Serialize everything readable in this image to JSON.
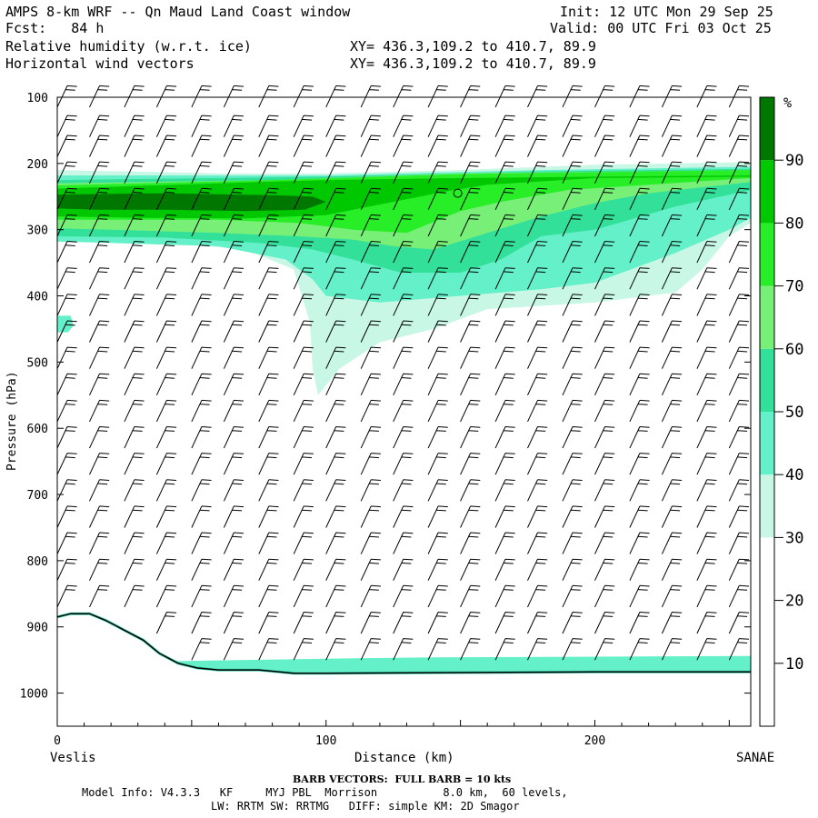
{
  "header": {
    "title": "AMPS 8-km WRF -- Qn Maud Land Coast window",
    "fcst": "Fcst:   84 h",
    "init": "Init: 12 UTC Mon 29 Sep 25",
    "valid": "Valid: 00 UTC Fri 03 Oct 25",
    "field1": "Relative humidity (w.r.t. ice)",
    "field2": "Horizontal wind vectors",
    "xy1": "XY= 436.3,109.2 to 410.7, 89.9",
    "xy2": "XY= 436.3,109.2 to 410.7, 89.9"
  },
  "footer": {
    "barb_note": "BARB VECTORS:  FULL BARB = 10 kts",
    "model_info": "Model Info: V4.3.3   KF     MYJ PBL  Morrison          8.0 km,  60 levels,",
    "physics": "LW: RRTM SW: RRTMG   DIFF: simple KM: 2D Smagor"
  },
  "chart_data": {
    "type": "heatmap",
    "title": "Relative humidity (w.r.t. ice) cross-section",
    "xlabel": "Distance (km)",
    "ylabel": "Pressure (hPa)",
    "xlim": [
      0,
      258
    ],
    "ylim": [
      1050,
      100
    ],
    "x_ticks": [
      0,
      100,
      200
    ],
    "y_ticks": [
      100,
      200,
      300,
      400,
      500,
      600,
      700,
      800,
      900,
      1000
    ],
    "left_endpoint": "Veslis",
    "right_endpoint": "SANAE",
    "colorbar": {
      "unit": "%",
      "tick_labels": [
        "10",
        "20",
        "30",
        "40",
        "50",
        "60",
        "70",
        "80",
        "90"
      ],
      "levels": [
        0,
        30,
        40,
        50,
        60,
        70,
        80,
        90,
        100
      ],
      "colors": [
        "#ffffff",
        "#c8f7e6",
        "#64f0c8",
        "#32e09a",
        "#78f078",
        "#28ee28",
        "#00c800",
        "#007800"
      ]
    },
    "contour_bands": [
      {
        "min": 30,
        "points": [
          [
            0,
            210
          ],
          [
            60,
            215
          ],
          [
            100,
            215
          ],
          [
            150,
            210
          ],
          [
            200,
            202
          ],
          [
            258,
            198
          ],
          [
            258,
            290
          ],
          [
            250,
            310
          ],
          [
            240,
            360
          ],
          [
            230,
            395
          ],
          [
            200,
            410
          ],
          [
            160,
            420
          ],
          [
            140,
            450
          ],
          [
            120,
            470
          ],
          [
            105,
            510
          ],
          [
            97,
            550
          ],
          [
            95,
            510
          ],
          [
            94,
            440
          ],
          [
            88,
            360
          ],
          [
            70,
            330
          ],
          [
            40,
            320
          ],
          [
            0,
            318
          ]
        ]
      },
      {
        "min": 40,
        "points": [
          [
            0,
            218
          ],
          [
            100,
            218
          ],
          [
            180,
            210
          ],
          [
            258,
            205
          ],
          [
            258,
            282
          ],
          [
            250,
            300
          ],
          [
            230,
            335
          ],
          [
            200,
            380
          ],
          [
            180,
            390
          ],
          [
            150,
            400
          ],
          [
            120,
            410
          ],
          [
            100,
            400
          ],
          [
            95,
            375
          ],
          [
            85,
            345
          ],
          [
            60,
            325
          ],
          [
            20,
            320
          ],
          [
            0,
            318
          ]
        ]
      },
      {
        "min": 50,
        "points": [
          [
            0,
            225
          ],
          [
            100,
            220
          ],
          [
            180,
            212
          ],
          [
            258,
            208
          ],
          [
            258,
            240
          ],
          [
            230,
            265
          ],
          [
            200,
            300
          ],
          [
            180,
            310
          ],
          [
            165,
            345
          ],
          [
            150,
            365
          ],
          [
            128,
            365
          ],
          [
            110,
            345
          ],
          [
            95,
            330
          ],
          [
            75,
            320
          ],
          [
            40,
            312
          ],
          [
            0,
            310
          ]
        ]
      },
      {
        "min": 60,
        "points": [
          [
            0,
            230
          ],
          [
            80,
            225
          ],
          [
            150,
            215
          ],
          [
            258,
            210
          ],
          [
            258,
            228
          ],
          [
            220,
            245
          ],
          [
            200,
            260
          ],
          [
            180,
            280
          ],
          [
            160,
            305
          ],
          [
            140,
            330
          ],
          [
            125,
            325
          ],
          [
            110,
            315
          ],
          [
            90,
            310
          ],
          [
            60,
            305
          ],
          [
            20,
            300
          ],
          [
            0,
            298
          ]
        ]
      },
      {
        "min": 70,
        "points": [
          [
            0,
            233
          ],
          [
            80,
            225
          ],
          [
            150,
            216
          ],
          [
            220,
            212
          ],
          [
            258,
            210
          ],
          [
            258,
            222
          ],
          [
            220,
            232
          ],
          [
            190,
            240
          ],
          [
            165,
            258
          ],
          [
            150,
            272
          ],
          [
            130,
            305
          ],
          [
            110,
            300
          ],
          [
            90,
            290
          ],
          [
            60,
            285
          ],
          [
            0,
            285
          ]
        ]
      },
      {
        "min": 80,
        "points": [
          [
            0,
            238
          ],
          [
            60,
            230
          ],
          [
            100,
            225
          ],
          [
            150,
            222
          ],
          [
            200,
            220
          ],
          [
            258,
            218
          ],
          [
            258,
            220
          ],
          [
            200,
            222
          ],
          [
            160,
            232
          ],
          [
            145,
            242
          ],
          [
            120,
            262
          ],
          [
            100,
            278
          ],
          [
            70,
            283
          ],
          [
            30,
            282
          ],
          [
            0,
            280
          ]
        ]
      },
      {
        "min": 90,
        "points": [
          [
            0,
            247
          ],
          [
            40,
            245
          ],
          [
            80,
            248
          ],
          [
            95,
            250
          ],
          [
            100,
            258
          ],
          [
            92,
            270
          ],
          [
            70,
            272
          ],
          [
            40,
            270
          ],
          [
            15,
            270
          ],
          [
            0,
            268
          ]
        ]
      },
      {
        "min": 40,
        "points": [
          [
            0,
            430
          ],
          [
            5,
            430
          ],
          [
            6,
            445
          ],
          [
            4,
            455
          ],
          [
            0,
            455
          ]
        ]
      },
      {
        "min": 40,
        "points": [
          [
            0,
            955
          ],
          [
            40,
            952
          ],
          [
            100,
            948
          ],
          [
            140,
            946
          ],
          [
            200,
            945
          ],
          [
            258,
            944
          ],
          [
            258,
            968
          ],
          [
            0,
            968
          ]
        ]
      }
    ],
    "terrain_surface": [
      [
        0,
        885
      ],
      [
        5,
        880
      ],
      [
        12,
        880
      ],
      [
        18,
        890
      ],
      [
        25,
        905
      ],
      [
        32,
        920
      ],
      [
        38,
        940
      ],
      [
        45,
        955
      ],
      [
        52,
        962
      ],
      [
        60,
        965
      ],
      [
        70,
        965
      ],
      [
        75,
        965
      ],
      [
        80,
        967
      ],
      [
        88,
        970
      ],
      [
        100,
        970
      ],
      [
        150,
        969
      ],
      [
        200,
        968
      ],
      [
        258,
        968
      ]
    ],
    "wind_barbs": {
      "x_positions_km": [
        0,
        12,
        25,
        37,
        50,
        62,
        75,
        88,
        100,
        113,
        125,
        138,
        150,
        163,
        175,
        188,
        200,
        213,
        225,
        238,
        250
      ],
      "pressure_levels": [
        115,
        160,
        190,
        230,
        270,
        310,
        350,
        390,
        430,
        470,
        510,
        550,
        590,
        630,
        670,
        710,
        750,
        790,
        830,
        870,
        910,
        950
      ],
      "note": "Full barb = 10 kts",
      "direction_deg": 25,
      "speed_kts": 20
    },
    "marker_circle": {
      "x": 149,
      "y": 245
    }
  }
}
